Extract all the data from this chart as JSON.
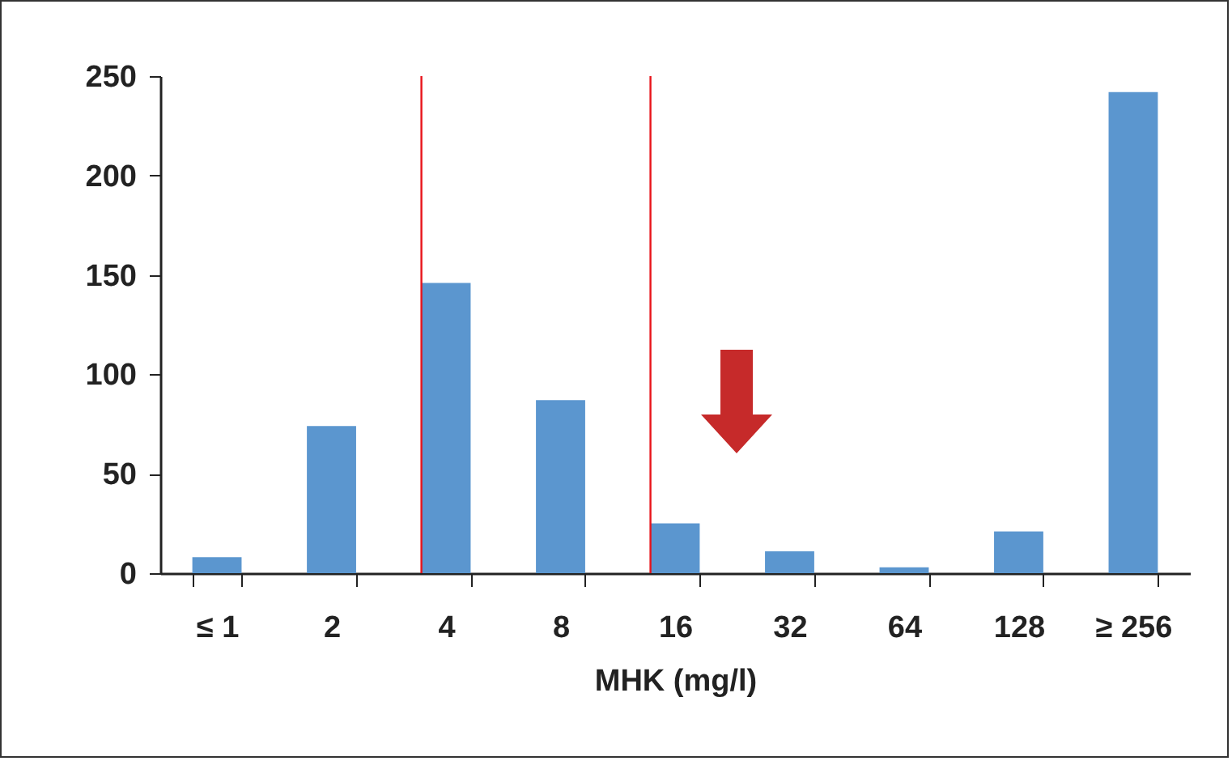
{
  "chart_data": {
    "type": "bar",
    "xlabel": "MHK (mg/l)",
    "categories": [
      "≤ 1",
      "2",
      "4",
      "8",
      "16",
      "32",
      "64",
      "128",
      "≥ 256"
    ],
    "values": [
      8,
      74,
      146,
      87,
      25,
      11,
      3,
      21,
      242
    ],
    "color": "#5b96cf",
    "ylim": [
      0,
      250
    ],
    "yticks": [
      0,
      50,
      100,
      150,
      200,
      250
    ],
    "grid": false,
    "ref_lines": [
      {
        "axis": "x",
        "value": "4",
        "color": "#e8141b"
      },
      {
        "axis": "x",
        "value": "16",
        "color": "#e8141b"
      }
    ]
  }
}
